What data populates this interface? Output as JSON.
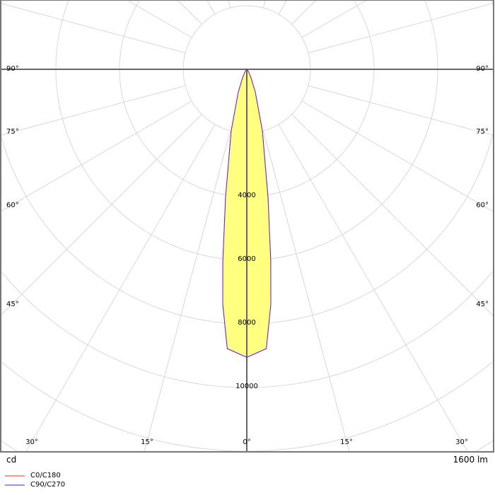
{
  "chart_data": {
    "type": "polar",
    "unit_label": "cd",
    "flux_label": "1600 lm",
    "radial_ticks": [
      2000,
      4000,
      6000,
      8000,
      10000,
      12000,
      14000,
      16000
    ],
    "radial_tick_labels": [
      "4000",
      "6000",
      "8000",
      "10000"
    ],
    "angle_step_deg": 15,
    "angle_labels_side": [
      "90°",
      "75°",
      "60°",
      "45°"
    ],
    "angle_labels_bottom": [
      "30°",
      "15°",
      "0°",
      "15°",
      "30°"
    ],
    "grid": true,
    "legend_placement": "bottom-left",
    "series": [
      {
        "name": "C0/C180",
        "color": "#ff8080",
        "angles": [
          0,
          4,
          5.85,
          7.1,
          9.4,
          14.2,
          20.6,
          26.6,
          35,
          45,
          60,
          90
        ],
        "values": [
          9050,
          8800,
          7420,
          6090,
          4100,
          2000,
          760,
          300,
          100,
          30,
          5,
          0
        ]
      },
      {
        "name": "C90/C270",
        "color": "#8080ff",
        "angles": [
          0,
          4,
          5.85,
          7.1,
          9.4,
          14.2,
          20.6,
          26.6,
          35,
          45,
          60,
          90
        ],
        "values": [
          9050,
          8800,
          7420,
          6090,
          4100,
          2000,
          760,
          300,
          100,
          30,
          5,
          0
        ]
      }
    ],
    "fill_color": "#ffff80",
    "outline_color": "#6a20c0"
  }
}
